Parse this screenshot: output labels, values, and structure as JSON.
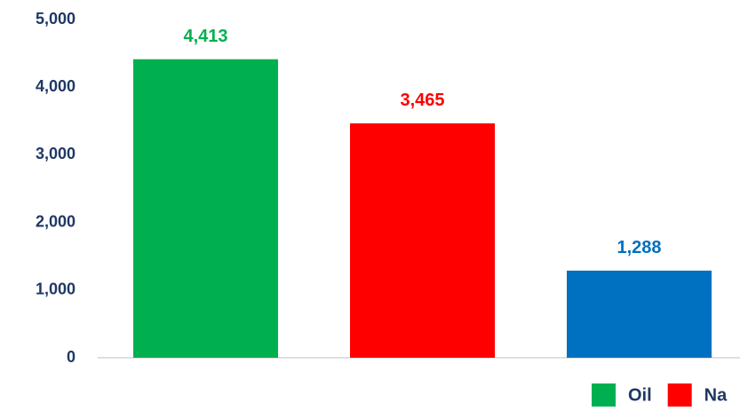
{
  "chart_data": {
    "type": "bar",
    "series": [
      {
        "name": "Oil",
        "color": "#00b050",
        "values": [
          4413
        ],
        "value_labels": [
          "4,413"
        ]
      },
      {
        "name": "Na",
        "color": "#ff0000",
        "values": [
          3465
        ],
        "value_labels": [
          "3,465"
        ]
      },
      {
        "color": "#0070c0",
        "values": [
          1288
        ],
        "value_labels": [
          "1,288"
        ]
      }
    ],
    "ylim": [
      0,
      5000
    ],
    "yticks": [
      0,
      {
        "value": 1000,
        "label": "1,000"
      },
      {
        "value": 2000,
        "label": "2,000"
      },
      {
        "value": 3000,
        "label": "3,000"
      },
      {
        "value": 4000,
        "label": "4,000"
      },
      {
        "value": 5000,
        "label": "5,000"
      }
    ],
    "legend": "bottom-right"
  }
}
